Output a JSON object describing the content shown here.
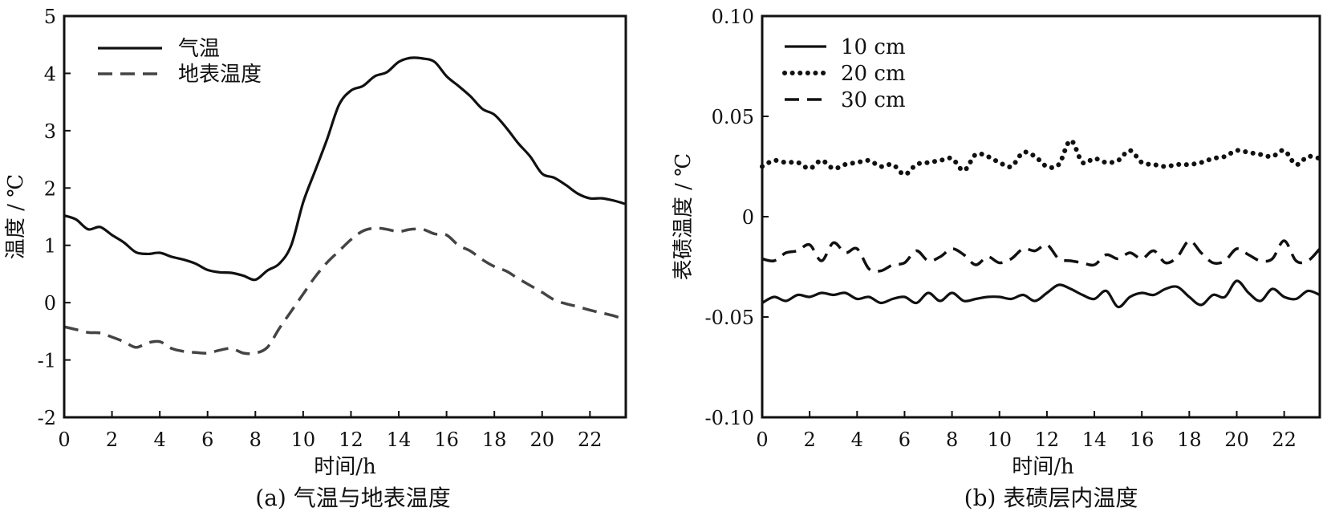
{
  "chart_data": [
    {
      "type": "line",
      "caption": "(a) 气温与地表温度",
      "xlabel": "时间/h",
      "ylabel": "温度 / ℃",
      "xlim": [
        0,
        23.5
      ],
      "ylim": [
        -2,
        5
      ],
      "xticks": [
        0,
        2,
        4,
        6,
        8,
        10,
        12,
        14,
        16,
        18,
        20,
        22
      ],
      "yticks": [
        -2,
        -1,
        0,
        1,
        2,
        3,
        4,
        5
      ],
      "grid": false,
      "legend_position": "top-left",
      "series": [
        {
          "name": "气温",
          "style": "solid",
          "color": "#111111",
          "x": [
            0,
            0.5,
            1,
            1.5,
            2,
            2.5,
            3,
            3.5,
            4,
            4.5,
            5,
            5.5,
            6,
            6.5,
            7,
            7.5,
            8,
            8.5,
            9,
            9.5,
            10,
            10.5,
            11,
            11.5,
            12,
            12.5,
            13,
            13.5,
            14,
            14.5,
            15,
            15.5,
            16,
            16.5,
            17,
            17.5,
            18,
            18.5,
            19,
            19.5,
            20,
            20.5,
            21,
            21.5,
            22,
            22.5,
            23,
            23.5
          ],
          "y": [
            1.52,
            1.45,
            1.28,
            1.32,
            1.18,
            1.05,
            0.88,
            0.85,
            0.87,
            0.8,
            0.75,
            0.68,
            0.57,
            0.53,
            0.52,
            0.47,
            0.4,
            0.56,
            0.68,
            1.0,
            1.75,
            2.3,
            2.85,
            3.45,
            3.7,
            3.78,
            3.95,
            4.02,
            4.2,
            4.27,
            4.26,
            4.2,
            3.95,
            3.78,
            3.6,
            3.38,
            3.28,
            3.05,
            2.78,
            2.55,
            2.25,
            2.18,
            2.05,
            1.9,
            1.82,
            1.82,
            1.78,
            1.72
          ]
        },
        {
          "name": "地表温度",
          "style": "dashed",
          "color": "#444444",
          "x": [
            0,
            0.5,
            1,
            1.5,
            2,
            2.5,
            3,
            3.5,
            4,
            4.5,
            5,
            5.5,
            6,
            6.5,
            7,
            7.5,
            8,
            8.5,
            9,
            9.5,
            10,
            10.5,
            11,
            11.5,
            12,
            12.5,
            13,
            13.5,
            14,
            14.5,
            15,
            15.5,
            16,
            16.5,
            17,
            17.5,
            18,
            18.5,
            19,
            19.5,
            20,
            20.5,
            21,
            21.5,
            22,
            22.5,
            23,
            23.5
          ],
          "y": [
            -0.42,
            -0.47,
            -0.52,
            -0.53,
            -0.6,
            -0.68,
            -0.78,
            -0.7,
            -0.68,
            -0.8,
            -0.85,
            -0.87,
            -0.88,
            -0.83,
            -0.8,
            -0.88,
            -0.88,
            -0.78,
            -0.45,
            -0.15,
            0.15,
            0.45,
            0.7,
            0.9,
            1.1,
            1.25,
            1.3,
            1.28,
            1.24,
            1.28,
            1.28,
            1.2,
            1.18,
            1.0,
            0.9,
            0.75,
            0.63,
            0.55,
            0.42,
            0.3,
            0.18,
            0.05,
            -0.02,
            -0.07,
            -0.13,
            -0.18,
            -0.23,
            -0.3
          ]
        }
      ]
    },
    {
      "type": "line",
      "caption": "(b) 表碛层内温度",
      "xlabel": "时间/h",
      "ylabel": "表碛温度 / ℃",
      "xlim": [
        0,
        23.5
      ],
      "ylim": [
        -0.1,
        0.1
      ],
      "xticks": [
        0,
        2,
        4,
        6,
        8,
        10,
        12,
        14,
        16,
        18,
        20,
        22
      ],
      "yticks": [
        -0.1,
        -0.05,
        0,
        0.05,
        0.1
      ],
      "ytick_labels": [
        "-0.10",
        "-0.05",
        "0",
        "0.05",
        "0.10"
      ],
      "grid": false,
      "legend_position": "top-left",
      "series": [
        {
          "name": "10 cm",
          "style": "solid",
          "color": "#111111",
          "x": [
            0,
            0.5,
            1,
            1.5,
            2,
            2.5,
            3,
            3.5,
            4,
            4.5,
            5,
            5.5,
            6,
            6.5,
            7,
            7.5,
            8,
            8.5,
            9,
            9.5,
            10,
            10.5,
            11,
            11.5,
            12,
            12.5,
            13,
            13.5,
            14,
            14.5,
            15,
            15.5,
            16,
            16.5,
            17,
            17.5,
            18,
            18.5,
            19,
            19.5,
            20,
            20.5,
            21,
            21.5,
            22,
            22.5,
            23,
            23.5
          ],
          "y": [
            -0.043,
            -0.04,
            -0.042,
            -0.039,
            -0.04,
            -0.038,
            -0.039,
            -0.038,
            -0.041,
            -0.04,
            -0.043,
            -0.041,
            -0.04,
            -0.043,
            -0.038,
            -0.042,
            -0.038,
            -0.042,
            -0.041,
            -0.04,
            -0.04,
            -0.041,
            -0.039,
            -0.042,
            -0.038,
            -0.034,
            -0.036,
            -0.039,
            -0.041,
            -0.037,
            -0.045,
            -0.04,
            -0.038,
            -0.039,
            -0.036,
            -0.035,
            -0.04,
            -0.044,
            -0.039,
            -0.04,
            -0.032,
            -0.038,
            -0.042,
            -0.036,
            -0.04,
            -0.041,
            -0.037,
            -0.039
          ]
        },
        {
          "name": "20 cm",
          "style": "dotted",
          "color": "#111111",
          "x": [
            0,
            0.5,
            1,
            1.5,
            2,
            2.5,
            3,
            3.5,
            4,
            4.5,
            5,
            5.5,
            6,
            6.5,
            7,
            7.5,
            8,
            8.5,
            9,
            9.5,
            10,
            10.5,
            11,
            11.5,
            12,
            12.5,
            13,
            13.5,
            14,
            14.5,
            15,
            15.5,
            16,
            16.5,
            17,
            17.5,
            18,
            18.5,
            19,
            19.5,
            20,
            20.5,
            21,
            21.5,
            22,
            22.5,
            23,
            23.5
          ],
          "y": [
            0.025,
            0.028,
            0.027,
            0.027,
            0.024,
            0.028,
            0.024,
            0.026,
            0.027,
            0.028,
            0.025,
            0.026,
            0.021,
            0.026,
            0.027,
            0.028,
            0.029,
            0.023,
            0.031,
            0.03,
            0.027,
            0.025,
            0.032,
            0.03,
            0.025,
            0.026,
            0.038,
            0.027,
            0.029,
            0.027,
            0.028,
            0.033,
            0.027,
            0.026,
            0.025,
            0.026,
            0.026,
            0.027,
            0.029,
            0.03,
            0.033,
            0.032,
            0.031,
            0.03,
            0.033,
            0.026,
            0.03,
            0.029
          ]
        },
        {
          "name": "30 cm",
          "style": "dashed",
          "color": "#111111",
          "x": [
            0,
            0.5,
            1,
            1.5,
            2,
            2.5,
            3,
            3.5,
            4,
            4.5,
            5,
            5.5,
            6,
            6.5,
            7,
            7.5,
            8,
            8.5,
            9,
            9.5,
            10,
            10.5,
            11,
            11.5,
            12,
            12.5,
            13,
            13.5,
            14,
            14.5,
            15,
            15.5,
            16,
            16.5,
            17,
            17.5,
            18,
            18.5,
            19,
            19.5,
            20,
            20.5,
            21,
            21.5,
            22,
            22.5,
            23,
            23.5
          ],
          "y": [
            -0.021,
            -0.022,
            -0.018,
            -0.017,
            -0.014,
            -0.022,
            -0.013,
            -0.018,
            -0.016,
            -0.026,
            -0.027,
            -0.024,
            -0.023,
            -0.017,
            -0.022,
            -0.02,
            -0.016,
            -0.019,
            -0.024,
            -0.02,
            -0.023,
            -0.021,
            -0.016,
            -0.017,
            -0.014,
            -0.021,
            -0.022,
            -0.023,
            -0.024,
            -0.019,
            -0.021,
            -0.018,
            -0.021,
            -0.017,
            -0.023,
            -0.02,
            -0.012,
            -0.018,
            -0.023,
            -0.022,
            -0.016,
            -0.019,
            -0.022,
            -0.021,
            -0.012,
            -0.022,
            -0.022,
            -0.016
          ]
        }
      ]
    }
  ]
}
